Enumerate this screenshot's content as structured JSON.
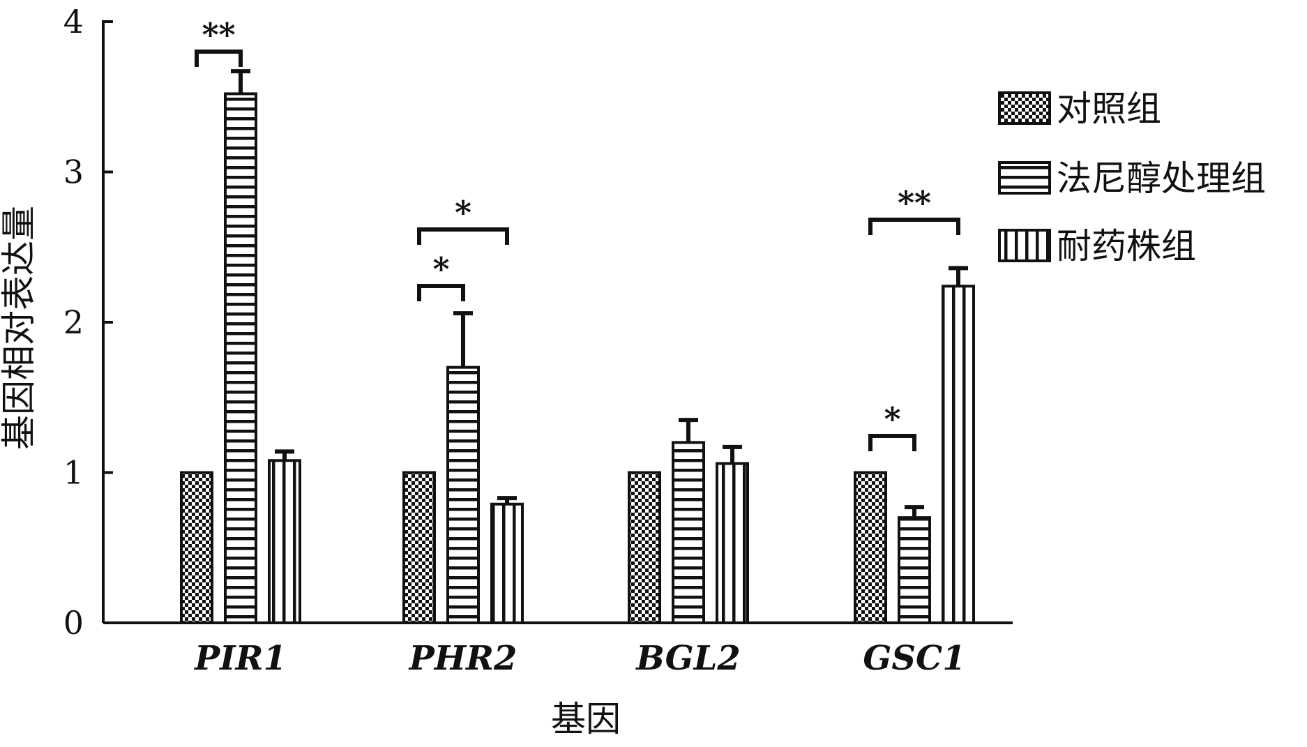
{
  "chart_data": {
    "type": "bar",
    "title": "",
    "xlabel": "基因",
    "ylabel": "基因相对表达量",
    "ylim": [
      0,
      4
    ],
    "yticks": [
      "0",
      "1",
      "2",
      "3",
      "4"
    ],
    "categories": [
      "PIR1",
      "PHR2",
      "BGL2",
      "GSC1"
    ],
    "legend_position": "right",
    "series": [
      {
        "name": "对照组",
        "values": [
          1.0,
          1.0,
          1.0,
          1.0
        ],
        "errors": [
          0,
          0,
          0,
          0
        ],
        "pattern": "checker"
      },
      {
        "name": "法尼醇处理组",
        "values": [
          3.52,
          1.7,
          1.2,
          0.7
        ],
        "errors": [
          0.15,
          0.36,
          0.15,
          0.07
        ],
        "pattern": "horizontal"
      },
      {
        "name": "耐药株组",
        "values": [
          1.08,
          0.79,
          1.06,
          2.24
        ],
        "errors": [
          0.06,
          0.04,
          0.11,
          0.12
        ],
        "pattern": "vertical"
      }
    ],
    "significance": [
      {
        "category": 0,
        "from_series": 0,
        "to_series": 1,
        "label": "**"
      },
      {
        "category": 1,
        "from_series": 0,
        "to_series": 1,
        "label": "*"
      },
      {
        "category": 1,
        "from_series": 0,
        "to_series": 2,
        "label": "*"
      },
      {
        "category": 3,
        "from_series": 0,
        "to_series": 1,
        "label": "*"
      },
      {
        "category": 3,
        "from_series": 0,
        "to_series": 2,
        "label": "**"
      }
    ]
  }
}
